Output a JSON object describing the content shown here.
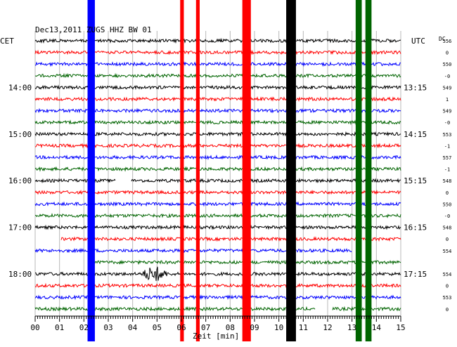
{
  "header": {
    "title": "Dec13,2011  ZUGS HHZ BW 01",
    "left_zone": "CET",
    "right_zone": "UTC",
    "dc_label": "DC"
  },
  "chart_data": {
    "type": "line",
    "title": "Dec13,2011  ZUGS HHZ BW 01",
    "xlabel": "Zeit [min]",
    "xlim": [
      0,
      15
    ],
    "x_ticks": [
      "00",
      "01",
      "02",
      "03",
      "04",
      "05",
      "06",
      "07",
      "08",
      "09",
      "10",
      "11",
      "12",
      "13",
      "14",
      "15"
    ],
    "grid": true,
    "trace_colors": [
      "#000000",
      "#ff0000",
      "#0000ff",
      "#006400"
    ],
    "left_time_labels": [
      {
        "row": 4,
        "text": "14:00"
      },
      {
        "row": 8,
        "text": "15:00"
      },
      {
        "row": 12,
        "text": "16:00"
      },
      {
        "row": 16,
        "text": "17:00"
      },
      {
        "row": 20,
        "text": "18:00"
      }
    ],
    "right_time_labels": [
      {
        "row": 4,
        "text": "13:15"
      },
      {
        "row": 8,
        "text": "14:15"
      },
      {
        "row": 12,
        "text": "15:15"
      },
      {
        "row": 16,
        "text": "16:15"
      },
      {
        "row": 20,
        "text": "17:15"
      }
    ],
    "dc_values": [
      "556",
      "0",
      "550",
      "-0",
      "549",
      "1",
      "549",
      "-0",
      "553",
      "-1",
      "557",
      "-1",
      "548",
      "0",
      "550",
      "-0",
      "548",
      "0",
      "554",
      "",
      "554",
      "0",
      "553",
      "0"
    ],
    "event_bands": [
      {
        "color": "#0000ff",
        "x_start": 2.15,
        "x_end": 2.45
      },
      {
        "color": "#ff0000",
        "x_start": 5.95,
        "x_end": 6.1
      },
      {
        "color": "#ff0000",
        "x_start": 6.6,
        "x_end": 6.75
      },
      {
        "color": "#ff0000",
        "x_start": 8.5,
        "x_end": 8.85
      },
      {
        "color": "#000000",
        "x_start": 10.3,
        "x_end": 10.7
      },
      {
        "color": "#006400",
        "x_start": 13.15,
        "x_end": 13.4
      },
      {
        "color": "#006400",
        "x_start": 13.55,
        "x_end": 13.8
      }
    ],
    "burst": {
      "row": 20,
      "x_center": 4.9,
      "width": 1.1
    },
    "gaps": [
      {
        "row": 12,
        "x_start": 3.3,
        "x_end": 3.95
      },
      {
        "row": 17,
        "x_start": 0.0,
        "x_end": 1.05
      },
      {
        "row": 18,
        "x_start": 13.0,
        "x_end": 15.0
      },
      {
        "row": 19,
        "x_start": 0.0,
        "x_end": 1.05
      },
      {
        "row": 19,
        "x_start": 1.05,
        "x_end": 2.35
      },
      {
        "row": 23,
        "x_start": 11.5,
        "x_end": 12.2
      }
    ]
  }
}
